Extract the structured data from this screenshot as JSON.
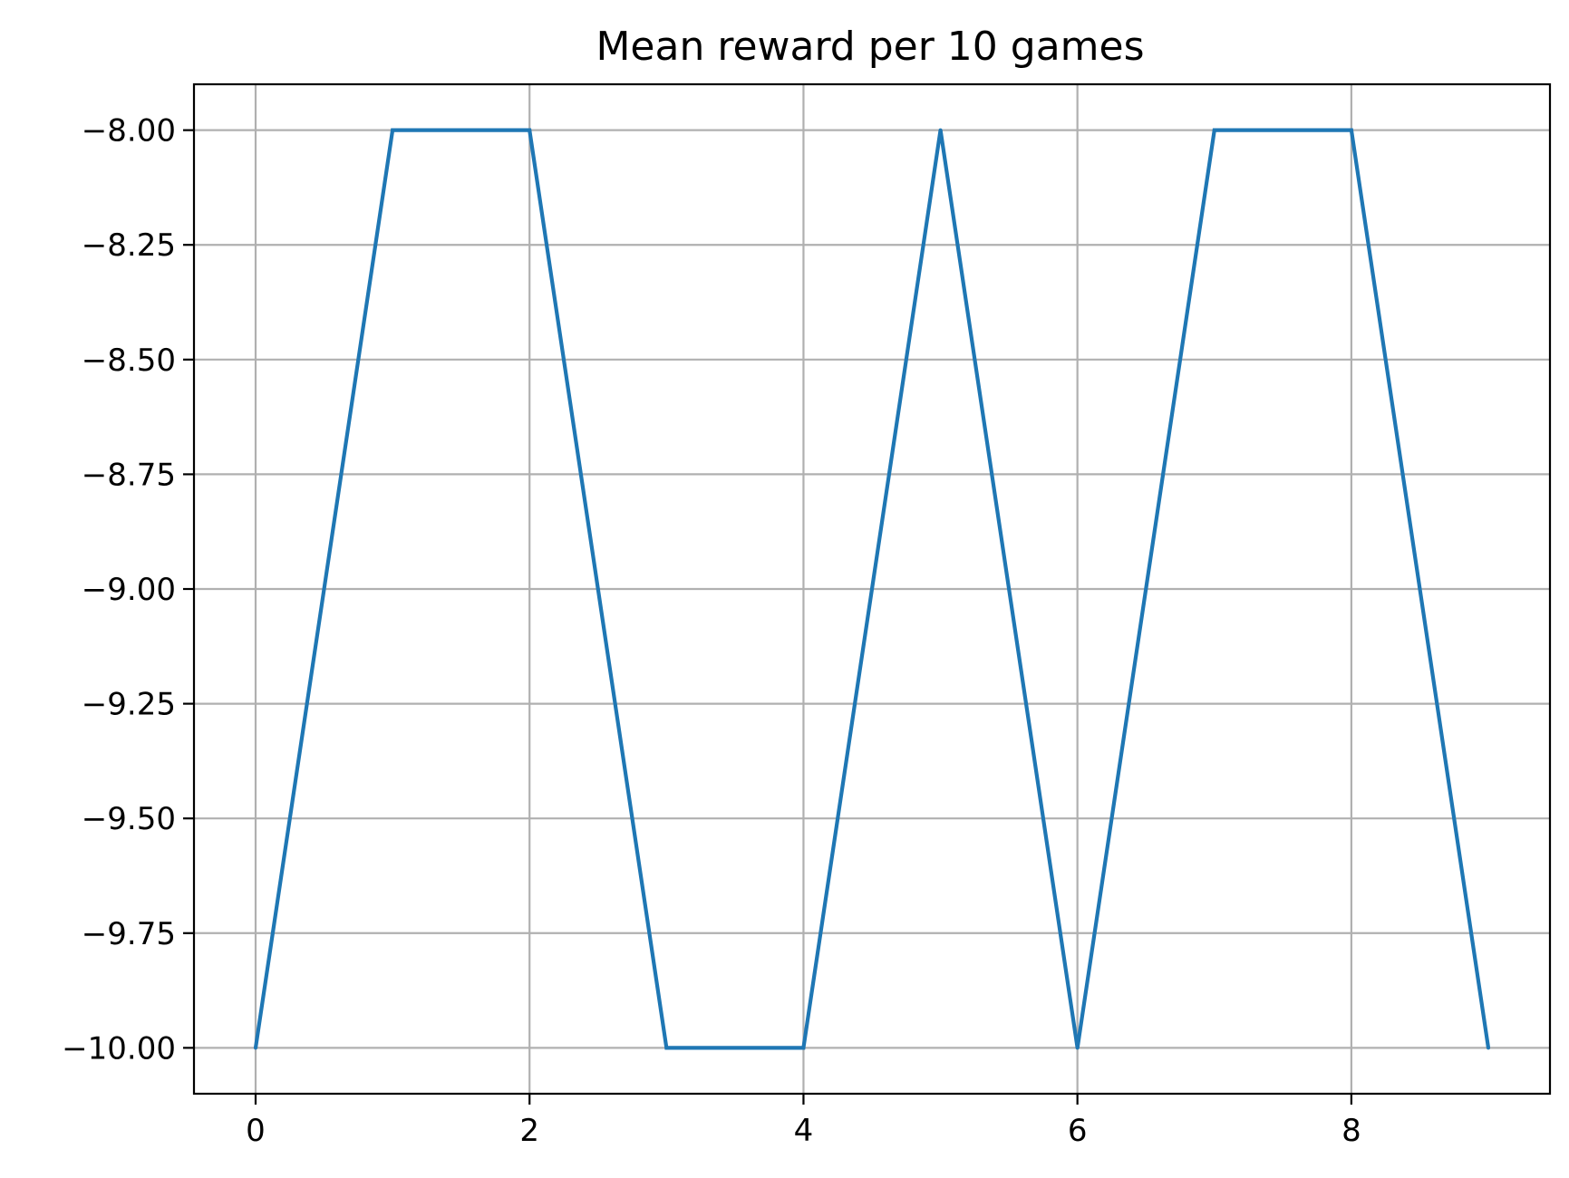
{
  "chart_data": {
    "type": "line",
    "title": "Mean reward per 10 games",
    "xlabel": "",
    "ylabel": "",
    "xlim": [
      -0.45,
      9.45
    ],
    "ylim": [
      -10.1,
      -7.9
    ],
    "x_ticks": [
      0,
      2,
      4,
      6,
      8
    ],
    "x_tick_labels": [
      "0",
      "2",
      "4",
      "6",
      "8"
    ],
    "y_ticks": [
      -8.0,
      -8.25,
      -8.5,
      -8.75,
      -9.0,
      -9.25,
      -9.5,
      -9.75,
      -10.0
    ],
    "y_tick_labels": [
      "−8.00",
      "−8.25",
      "−8.50",
      "−8.75",
      "−9.00",
      "−9.25",
      "−9.50",
      "−9.75",
      "−10.00"
    ],
    "grid": true,
    "series": [
      {
        "color": "#1f77b4",
        "x": [
          0,
          1,
          2,
          3,
          4,
          5,
          6,
          7,
          8,
          9
        ],
        "y": [
          -10,
          -8,
          -8,
          -10,
          -10,
          -8,
          -10,
          -8,
          -8,
          -10
        ]
      }
    ]
  }
}
